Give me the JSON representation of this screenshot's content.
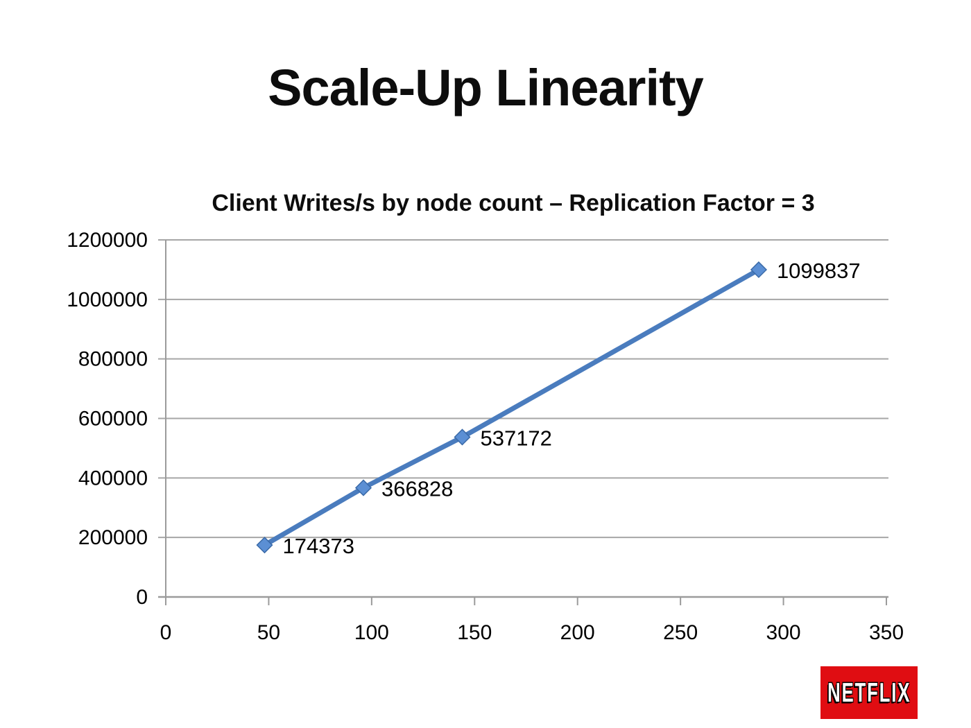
{
  "slide": {
    "title": "Scale-Up Linearity"
  },
  "chart_data": {
    "type": "line",
    "title": "Client Writes/s by node count – Replication Factor = 3",
    "xlabel": "",
    "ylabel": "",
    "x": [
      48,
      96,
      144,
      288
    ],
    "series": [
      {
        "name": "Client Writes/s",
        "values": [
          174373,
          366828,
          537172,
          1099837
        ]
      }
    ],
    "point_labels": [
      "174373",
      "366828",
      "537172",
      "1099837"
    ],
    "xlim": [
      0,
      350
    ],
    "ylim": [
      0,
      1200000
    ],
    "x_ticks": [
      0,
      50,
      100,
      150,
      200,
      250,
      300,
      350
    ],
    "y_ticks": [
      0,
      200000,
      400000,
      600000,
      800000,
      1000000,
      1200000
    ],
    "grid": "horizontal-only",
    "legend": "none",
    "marker": "diamond",
    "colors": {
      "line": "#4A7CBE",
      "marker_fill": "#5B8FD4",
      "marker_stroke": "#3A6AA8",
      "grid": "#A6A6A6",
      "axis": "#9B9B9B",
      "text": "#000000"
    }
  },
  "logo": {
    "text": "NETFLIX",
    "background": "#E00D12",
    "text_color": "#FFFFFF"
  }
}
